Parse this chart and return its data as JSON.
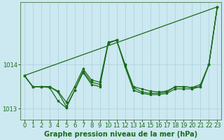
{
  "background_color": "#cce8f0",
  "grid_color": "#b0d4e0",
  "line_color": "#1a6b1a",
  "xlabel": "Graphe pression niveau de la mer (hPa)",
  "ylim": [
    1012.75,
    1015.4
  ],
  "xlim": [
    -0.5,
    23.5
  ],
  "yticks": [
    1013,
    1014
  ],
  "xticks": [
    0,
    1,
    2,
    3,
    4,
    5,
    6,
    7,
    8,
    9,
    10,
    11,
    12,
    13,
    14,
    15,
    16,
    17,
    18,
    19,
    20,
    21,
    22,
    23
  ],
  "series": {
    "line1_x": [
      0,
      1,
      2,
      3,
      4,
      5,
      6,
      7,
      8,
      9,
      10,
      11,
      12,
      13,
      14,
      15,
      16,
      17,
      18,
      19,
      20,
      21,
      22,
      23
    ],
    "line1_y": [
      1013.75,
      1013.5,
      1013.5,
      1013.5,
      1013.4,
      1013.15,
      1013.5,
      1013.9,
      1013.65,
      1013.6,
      1014.5,
      1014.55,
      1014.0,
      1013.5,
      1013.45,
      1013.4,
      1013.38,
      1013.4,
      1013.5,
      1013.5,
      1013.48,
      1013.5,
      1014.0,
      1015.3
    ],
    "line2_x": [
      0,
      1,
      2,
      3,
      4,
      5,
      6,
      7,
      8,
      9,
      10,
      11,
      12,
      13,
      14,
      15,
      16,
      17,
      18,
      19,
      20,
      21,
      22,
      23
    ],
    "line2_y": [
      1013.75,
      1013.5,
      1013.5,
      1013.5,
      1013.38,
      1013.05,
      1013.42,
      1013.85,
      1013.6,
      1013.55,
      1014.48,
      1014.55,
      1014.0,
      1013.48,
      1013.38,
      1013.35,
      1013.35,
      1013.38,
      1013.5,
      1013.5,
      1013.48,
      1013.55,
      1014.0,
      1015.3
    ],
    "line3_x": [
      0,
      1,
      2,
      3,
      4,
      5,
      6,
      7,
      8,
      9,
      10,
      11,
      12,
      13,
      14,
      15,
      16,
      17,
      18,
      19,
      20,
      21,
      22,
      23
    ],
    "line3_y": [
      1013.75,
      1013.5,
      1013.5,
      1013.48,
      1013.18,
      1013.02,
      1013.42,
      1013.82,
      1013.55,
      1013.5,
      1014.48,
      1014.55,
      1013.95,
      1013.42,
      1013.35,
      1013.32,
      1013.32,
      1013.35,
      1013.45,
      1013.45,
      1013.45,
      1013.5,
      1014.0,
      1015.3
    ],
    "line4_x": [
      0,
      23
    ],
    "line4_y": [
      1013.75,
      1015.3
    ]
  },
  "marker_size": 2.0,
  "line_width": 0.9,
  "font_size_label": 7.0,
  "font_size_tick": 6.0
}
